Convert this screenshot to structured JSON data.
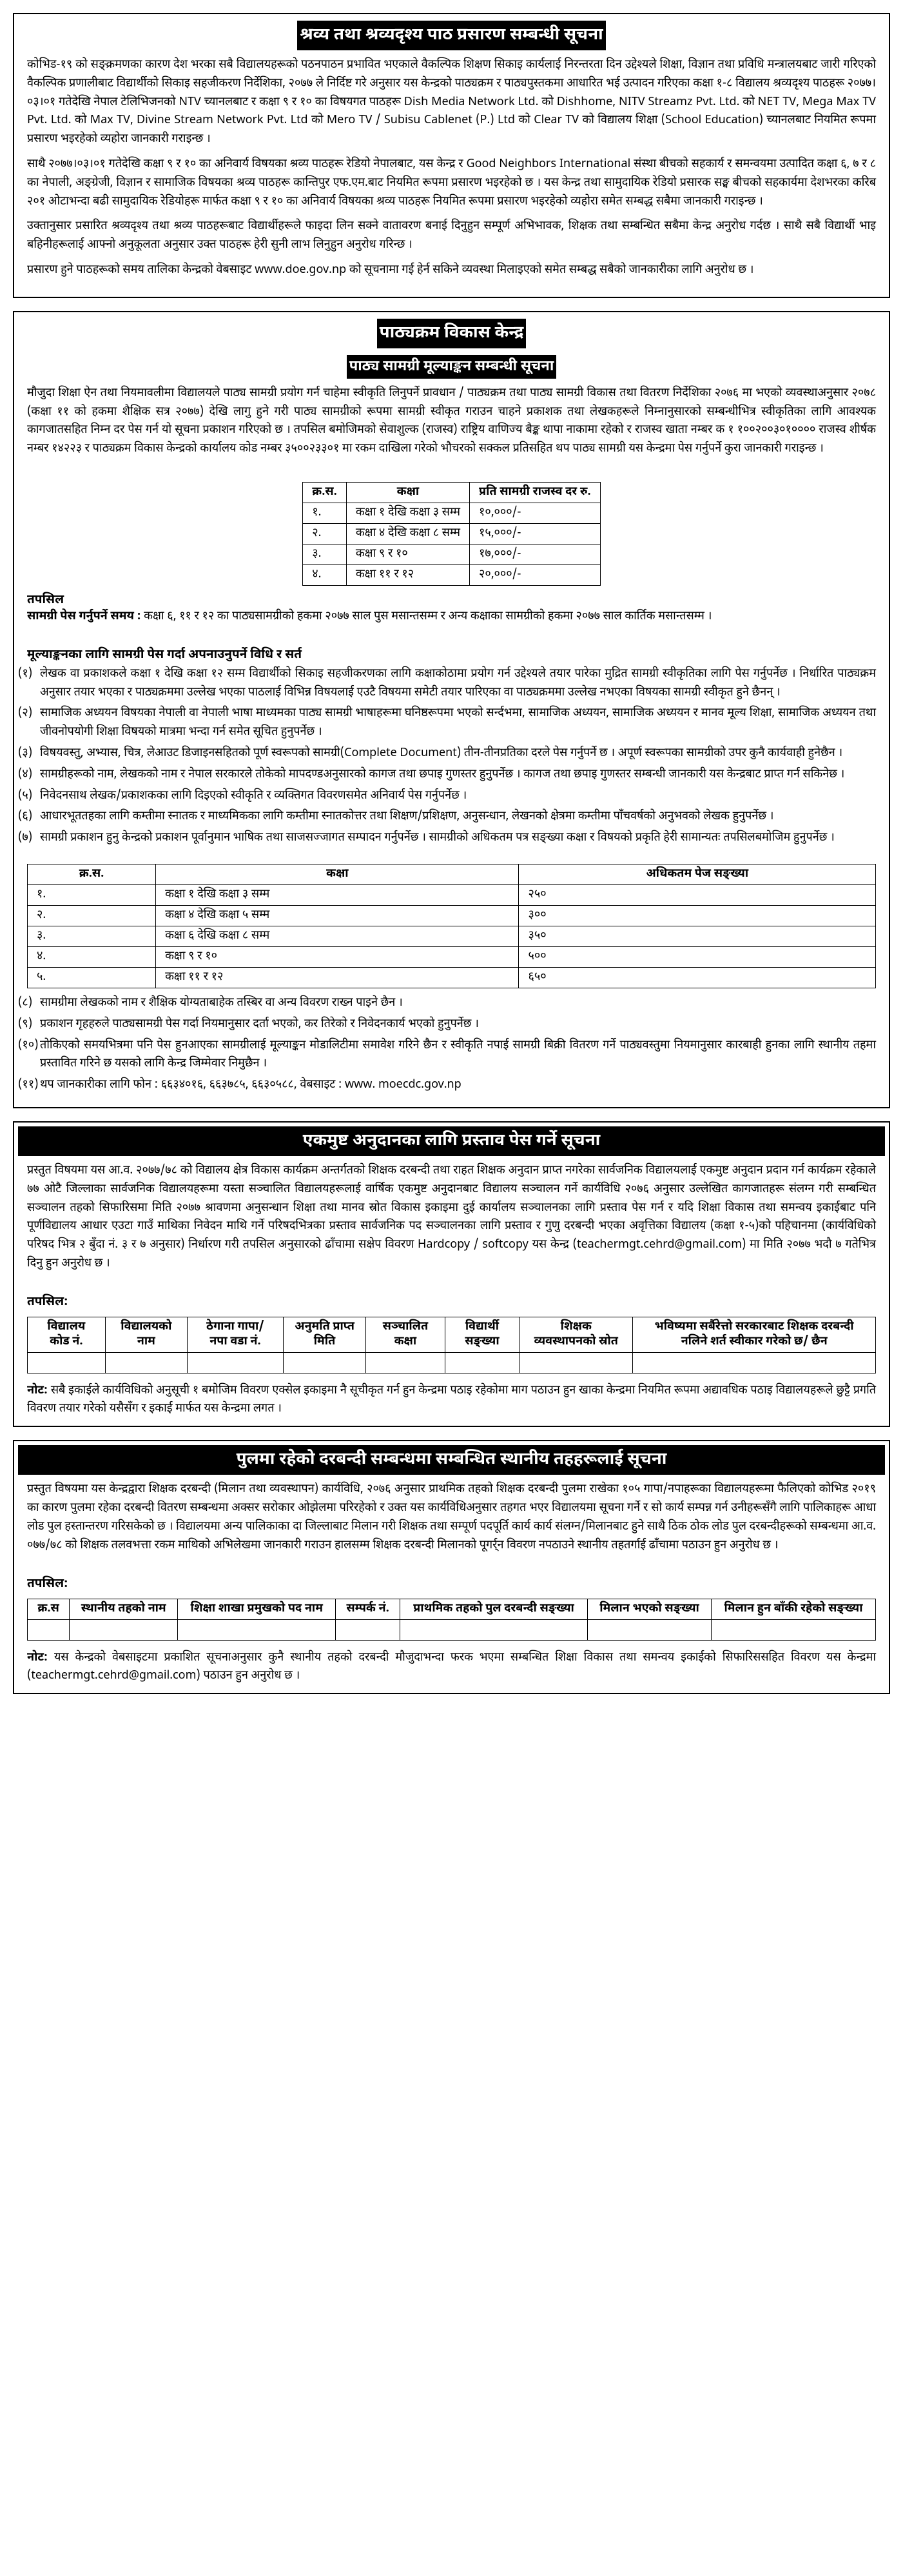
{
  "notice1": {
    "title": "श्रव्य तथा श्रव्यदृश्य पाठ प्रसारण सम्बन्धी सूचना",
    "p1": "कोभिड-१९ को सङ्क्रमणका कारण देश भरका सबै विद्यालयहरूको पठनपाठन प्रभावित भएकाले वैकल्पिक शिक्षण सिकाइ कार्यलाई निरन्तरता दिन उद्देश्यले शिक्षा, विज्ञान तथा प्रविधि मन्त्रालयबाट जारी गरिएको वैकल्पिक प्रणालीबाट विद्यार्थीको सिकाइ सहजीकरण निर्देशिका, २०७७ ले निर्दिष्ट गरे अनुसार यस केन्द्रको पाठ्यक्रम र पाठ्यपुस्तकमा आधारित भई उत्पादन गरिएका कक्षा १-८ विद्यालय श्रव्यदृश्य पाठहरू २०७७।०३।०१ गतेदेखि नेपाल टेलिभिजनको NTV च्यानलबाट र कक्षा ९ र १० का विषयगत पाठहरू Dish Media Network Ltd. को Dishhome, NITV Streamz Pvt. Ltd. को NET TV, Mega Max TV Pvt. Ltd. को Max TV, Divine Stream Network Pvt. Ltd को Mero TV / Subisu Cablenet (P.) Ltd को Clear TV को विद्यालय शिक्षा (School Education) च्यानलबाट नियमित रूपमा प्रसारण भइरहेको व्यहोरा जानकारी गराइन्छ ।",
    "p2": "साथै २०७७।०३।०१ गतेदेखि कक्षा ९ र १० का अनिवार्य विषयका श्रव्य पाठहरू रेडियो नेपालबाट, यस केन्द्र र Good Neighbors International संस्था बीचको सहकार्य र समन्वयमा उत्पादित कक्षा ६, ७ र ८ का नेपाली, अङ्ग्रेजी, विज्ञान र सामाजिक विषयका श्रव्य पाठहरू कान्तिपुर एफ.एम.बाट नियमित रूपमा प्रसारण भइरहेको छ । यस केन्द्र तथा सामुदायिक रेडियो प्रसारक सङ्घ बीचको सहकार्यमा देशभरका करिब २०१ ओटाभन्दा बढी सामुदायिक रेडियोहरू मार्फत कक्षा ९ र १० का अनिवार्य विषयका श्रव्य पाठहरू नियमित रूपमा प्रसारण भइरहेको व्यहोरा समेत सम्बद्ध सबैमा जानकारी गराइन्छ ।",
    "p3": "उक्तानुसार प्रसारित श्रव्यदृश्य तथा श्रव्य पाठहरूबाट विद्यार्थीहरूले फाइदा लिन सक्ने वातावरण बनाई दिनुहुन सम्पूर्ण अभिभावक, शिक्षक तथा सम्बन्धित सबैमा केन्द्र अनुरोध गर्दछ । साथै सबै विद्यार्थी भाइ बहिनीहरूलाई आफ्नो अनुकूलता अनुसार उक्त पाठहरू हेरी सुनी लाभ लिनुहुन अनुरोध गरिन्छ ।",
    "p4": "प्रसारण हुने पाठहरूको समय तालिका केन्द्रको वेबसाइट www.doe.gov.np को सूचनामा गई हेर्न सकिने व्यवस्था मिलाइएको समेत सम्बद्ध सबैको जानकारीका लागि अनुरोध छ ।"
  },
  "notice2": {
    "header": "पाठ्यक्रम विकास केन्द्र",
    "title": "पाठ्य सामग्री मूल्याङ्कन सम्बन्धी सूचना",
    "intro": "मौजुदा शिक्षा ऐन तथा नियमावलीमा विद्यालयले पाठ्य सामग्री प्रयोग गर्न चाहेमा स्वीकृति लिनुपर्ने प्रावधान / पाठ्यक्रम तथा पाठ्य सामग्री विकास तथा वितरण निर्देशिका २०७६ मा भएको व्यवस्थाअनुसार २०७८ (कक्षा ११ को हकमा शैक्षिक सत्र २०७७) देखि लागु हुने गरी पाठ्य सामग्रीको रूपमा सामग्री स्वीकृत गराउन चाहने प्रकाशक तथा लेखकहरूले निम्नानुसारको सम्बन्धीभित्र स्वीकृतिका लागि आवश्यक कागजातसहित निम्न दर पेस गर्न यो सूचना प्रकाशन गरिएको छ । तपसिल बमोजिमको सेवाशुल्क (राजस्व) राष्ट्रिय वाणिज्य बैङ्क थापा नाकामा रहेको र राजस्व खाता नम्बर क १ १००२००३०१०००० राजस्व शीर्षक नम्बर १४२२३ र पाठ्यक्रम विकास केन्द्रको कार्यालय कोड नम्बर ३५००२३३०१ मा रकम दाखिला गरेको भौचरको सक्कल प्रतिसहित थप पाठ्य सामग्री यस केन्द्रमा पेस गर्नुपर्ने कुरा जानकारी गराइन्छ ।",
    "fee_table": {
      "headers": [
        "क्र.स.",
        "कक्षा",
        "प्रति सामग्री राजस्व दर रु."
      ],
      "rows": [
        [
          "१.",
          "कक्षा १ देखि कक्षा ३ सम्म",
          "१०,०००/-"
        ],
        [
          "२.",
          "कक्षा ४ देखि कक्षा ८ सम्म",
          "१५,०००/-"
        ],
        [
          "३.",
          "कक्षा ९ र १०",
          "१७,०००/-"
        ],
        [
          "४.",
          "कक्षा ११ र १२",
          "२०,०००/-"
        ]
      ]
    },
    "detail_head": "तपसिल",
    "deadline_label": "सामग्री पेस गर्नुपर्ने समय :",
    "deadline_text": "कक्षा ६, ११ र १२ का पाठ्यसामग्रीको हकमा २०७७ साल पुस मसान्तसम्म र अन्य कक्षाका सामग्रीको हकमा २०७७ साल कार्तिक मसान्तसम्म ।",
    "rules_head": "मूल्याङ्कनका लागि सामग्री पेस गर्दा अपनाउनुपर्ने विधि र सर्त",
    "rules": [
      "लेखक वा प्रकाशकले कक्षा १ देखि कक्षा १२ सम्म विद्यार्थीको सिकाइ सहजीकरणका लागि कक्षाकोठामा प्रयोग गर्न उद्देश्यले तयार पारेका मुद्रित सामग्री स्वीकृतिका लागि पेस गर्नुपर्नेछ । निर्धारित पाठ्यक्रम अनुसार तयार भएका र पाठ्यक्रममा उल्लेख भएका पाठलाई विभिन्न विषयलाई एउटै विषयमा समेटी तयार पारिएका वा पाठ्यक्रममा उल्लेख नभएका विषयका सामग्री स्वीकृत हुने छैनन् ।",
      "सामाजिक अध्ययन विषयका नेपाली वा नेपाली भाषा माध्यमका पाठ्य सामग्री भाषाहरूमा घनिष्ठरूपमा भएको सर्न्दभमा, सामाजिक अध्ययन, सामाजिक अध्ययन र मानव मूल्य शिक्षा, सामाजिक अध्ययन तथा जीवनोपयोगी शिक्षा विषयको मात्रमा भन्दा गर्न समेत सूचित हुनुपर्नेछ ।",
      "विषयवस्तु, अभ्यास, चित्र, लेआउट डिजाइनसहितको पूर्ण स्वरूपको सामग्री(Complete Document) तीन-तीनप्रतिका दरले पेस गर्नुपर्ने छ । अपूर्ण स्वरूपका सामग्रीको उपर कुनै कार्यवाही हुनेछैन ।",
      "सामग्रीहरूको नाम, लेखकको नाम र नेपाल सरकारले तोकेको मापदण्डअनुसारको कागज तथा छपाइ गुणस्तर हुनुपर्नेछ । कागज तथा छपाइ गुणस्तर सम्बन्धी जानकारी यस केन्द्रबाट प्राप्त गर्न सकिनेछ ।",
      "निवेदनसाथ लेखक/प्रकाशकका लागि दिइएको स्वीकृति र व्यक्तिगत विवरणसमेत अनिवार्य पेस गर्नुपर्नेछ ।",
      "आधारभूततहका लागि कम्तीमा स्नातक र माध्यमिकका लागि कम्तीमा स्नातकोत्तर तथा शिक्षण/प्रशिक्षण, अनुसन्धान, लेखनको क्षेत्रमा कम्तीमा पाँचवर्षको अनुभवको लेखक हुनुपर्नेछ ।",
      "सामग्री प्रकाशन हुनु केन्द्रको प्रकाशन पूर्वानुमान भाषिक तथा साजसज्जागत सम्पादन गर्नुपर्नेछ । सामग्रीको अधिकतम पत्र सङ्ख्या कक्षा र विषयको प्रकृति हेरी सामान्यतः तपसिलबमोजिम हुनुपर्नेछ ।"
    ],
    "page_table": {
      "headers": [
        "क्र.स.",
        "कक्षा",
        "अधिकतम पेज सङ्ख्या"
      ],
      "rows": [
        [
          "१.",
          "कक्षा १ देखि कक्षा ३ सम्म",
          "२५०"
        ],
        [
          "२.",
          "कक्षा ४ देखि कक्षा ५ सम्म",
          "३००"
        ],
        [
          "३.",
          "कक्षा ६ देखि कक्षा ८ सम्म",
          "३५०"
        ],
        [
          "४.",
          "कक्षा ९ र १०",
          "५००"
        ],
        [
          "५.",
          "कक्षा ११ र १२",
          "६५०"
        ]
      ]
    },
    "rules2": [
      "सामग्रीमा लेखकको नाम र शैक्षिक योग्यताबाहेक तस्बिर वा अन्य विवरण राख्न पाइने छैन ।",
      "प्रकाशन गृहहरुले पाठ्यसामग्री पेस गर्दा नियमानुसार दर्ता भएको, कर तिरेको र निवेदनकार्य भएको हुनुपर्नेछ ।",
      "तोकिएको समयभित्रमा पनि पेस हुनआएका सामग्रीलाई मूल्याङ्कन मोडालिटीमा समावेश गरिने छैन र स्वीकृति नपाई सामग्री बिक्री वितरण गर्ने पाठ्यवस्तुमा नियमानुसार कारबाही हुनका लागि स्थानीय तहमा प्रस्तावित गरिने छ यसको लागि केन्द्र जिम्मेवार निमुछैन ।",
      "थप जानकारीका लागि फोन : ६६३४०१६, ६६३७८५, ६६३०५८८, वेबसाइट : www. moecdc.gov.np"
    ]
  },
  "notice3": {
    "title": "एकमुष्ट अनुदानका लागि प्रस्ताव पेस गर्ने सूचना",
    "body": "प्रस्तुत विषयमा यस आ.व. २०७७/७८ को विद्यालय क्षेत्र विकास कार्यक्रम अन्तर्गतको शिक्षक दरबन्दी तथा राहत शिक्षक अनुदान प्राप्त नगरेका सार्वजनिक विद्यालयलाई एकमुष्ट अनुदान प्रदान गर्न कार्यक्रम रहेकाले ७७ ओटै जिल्लाका सार्वजनिक विद्यालयहरूमा यस्ता सञ्चालित विद्यालयहरूलाई वार्षिक एकमुष्ट अनुदानबाट विद्यालय सञ्चालन गर्ने कार्यविधि २०७६ अनुसार उल्लेखित कागजातहरू संलग्न गरी सम्बन्धित सञ्चालन तहको सिफारिसमा मिति २०७७ श्रावणमा अनुसन्धान शिक्षा तथा मानव स्रोत विकास इकाइमा दुई कार्यालय सञ्चालनका लागि प्रस्ताव पेस गर्न र यदि शिक्षा विकास तथा समन्वय इकाईबाट पनि पूर्णविद्यालय आधार एउटा गाउँ माथिका निवेदन माथि गर्ने परिषदभित्रका प्रस्ताव सार्वजनिक पद सञ्चालनका लागि प्रस्ताव र गुणु दरबन्दी भएका अवृत्तिका विद्यालय (कक्षा १-५)को पहिचानमा (कार्यविधिको परिषद भित्र २ बुँदा नं. ३ र ७ अनुसार) निर्धारण गरी तपसिल अनुसारको ढाँचामा सक्षेप विवरण Hardcopy / softcopy यस केन्द्र (teachermgt.cehrd@gmail.com) मा मिति २०७७ भदौ ७ गतेभित्र दिनु हुन अनुरोध छ ।",
    "detail_head": "तपसिल:",
    "table_headers": [
      "विद्यालय कोड नं.",
      "विद्यालयको नाम",
      "ठेगाना गापा/ नपा वडा नं.",
      "अनुमति प्राप्त मिति",
      "सञ्चालित कक्षा",
      "विद्यार्थी सङ्ख्या",
      "शिक्षक व्यवस्थापनको स्रोत",
      "भविष्यमा सर्बैरेत्तो सरकारबाट शिक्षक दरबन्दी नलिने शर्त स्वीकार गरेको छ/ छैन"
    ],
    "note_label": "नोट:",
    "note": "सबै इकाईले कार्यविधिको अनुसूची १ बमोजिम विवरण एक्सेल इकाइमा नै सूचीकृत गर्न हुन केन्द्रमा पठाइ रहेकोमा माग पठाउन हुन खाका केन्द्रमा नियमित रूपमा अद्यावधिक पठाइ विद्यालयहरूले छुट्टै प्रगति विवरण तयार गरेको यसैसँग र इकाई मार्फत यस केन्द्रमा लगत ।"
  },
  "notice4": {
    "title": "पुलमा रहेको दरबन्दी सम्बन्धमा सम्बन्धित स्थानीय तहहरूलाई सूचना",
    "body": "प्रस्तुत विषयमा यस केन्द्रद्वारा शिक्षक दरबन्दी (मिलान तथा व्यवस्थापन) कार्यविधि, २०७६ अनुसार प्राथमिक तहको शिक्षक दरबन्दी पुलमा राखेका १०५ गापा/नपाहरूका विद्यालयहरूमा फैलिएको कोभिड २०१९ का कारण पुलमा रहेका दरबन्दी वितरण सम्बन्धमा अक्सर सरोकार ओझेलमा परिरहेको र उक्त यस कार्यविधिअनुसार तहगत भएर विद्यालयमा सूचना गर्ने र सो कार्य सम्पन्न गर्न उनीहरूसँगै लागि पालिकाहरू आधा लोड पुल हस्तान्तरण गरिसकेको छ । विद्यालयमा अन्य पालिकाका दा जिल्लाबाट मिलान गरी शिक्षक तथा सम्पूर्ण पदपूर्ति कार्य कार्य संलग्न/मिलानबाट हुने साथै ठिक ठोक लोड पुल दरबन्दीहरूको सम्बन्धमा आ.व. ०७७/७८ को शिक्षक तलवभत्ता रकम माथिको अभिलेखमा जानकारी गराउन हालसम्म शिक्षक दरबन्दी मिलानको पूगर्र्न विवरण नपठाउने स्थानीय तहतर्गाई ढाँचामा पठाउन हुन अनुरोध छ ।",
    "detail_head": "तपसिल:",
    "table_headers": [
      "क्र.स",
      "स्थानीय तहको नाम",
      "शिक्षा शाखा प्रमुखको पद नाम",
      "सम्पर्क नं.",
      "प्राथमिक तहको पुल दरबन्दी सङ्ख्या",
      "मिलान भएको सङ्ख्या",
      "मिलान हुन बाँकी रहेको सङ्ख्या"
    ],
    "note_label": "नोट:",
    "note": "यस केन्द्रको वेबसाइटमा प्रकाशित सूचनाअनुसार कुनै स्थानीय तहको दरबन्दी मौजुदाभन्दा फरक भएमा सम्बन्धित शिक्षा विकास तथा समन्वय इकाईको सिफारिससहित विवरण यस केन्द्रमा (teachermgt.cehrd@gmail.com) पठाउन हुन अनुरोध छ ।"
  }
}
